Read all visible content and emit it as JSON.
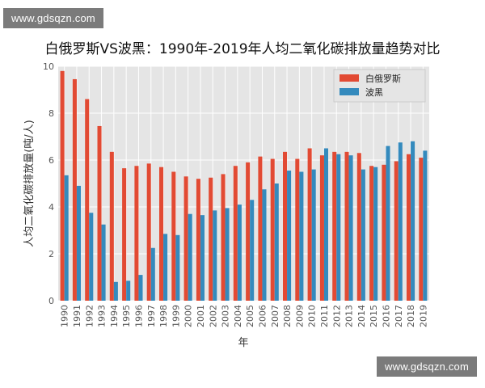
{
  "watermark": {
    "text": "www.gdsqzn.com"
  },
  "colors": {
    "belarus": "#e24a33",
    "poland": "#348abd",
    "plot_bg": "#e5e5e5",
    "grid": "#ffffff"
  },
  "chart_data": {
    "type": "bar",
    "title": "白俄罗斯VS波黑：1990年-2019年人均二氧化碳排放量趋势对比",
    "xlabel": "年",
    "ylabel": "人均二氧化碳排放量(吨/人)",
    "ylim": [
      0,
      10
    ],
    "yticks": [
      0,
      2,
      4,
      6,
      8,
      10
    ],
    "grid": true,
    "legend_position": "top-right",
    "categories": [
      "1990",
      "1991",
      "1992",
      "1993",
      "1994",
      "1995",
      "1996",
      "1997",
      "1998",
      "1999",
      "2000",
      "2001",
      "2002",
      "2003",
      "2004",
      "2005",
      "2006",
      "2007",
      "2008",
      "2009",
      "2010",
      "2011",
      "2012",
      "2013",
      "2014",
      "2015",
      "2016",
      "2017",
      "2018",
      "2019"
    ],
    "series": [
      {
        "name": "白俄罗斯",
        "color": "#e24a33",
        "values": [
          9.8,
          9.45,
          8.6,
          7.45,
          6.35,
          5.65,
          5.75,
          5.85,
          5.7,
          5.5,
          5.3,
          5.2,
          5.25,
          5.4,
          5.75,
          5.9,
          6.15,
          6.05,
          6.35,
          6.05,
          6.5,
          6.2,
          6.35,
          6.35,
          6.3,
          5.75,
          5.8,
          5.95,
          6.25,
          6.1
        ]
      },
      {
        "name": "波黑",
        "color": "#348abd",
        "values": [
          5.35,
          4.9,
          3.75,
          3.25,
          0.8,
          0.85,
          1.1,
          2.25,
          2.85,
          2.8,
          3.7,
          3.65,
          3.85,
          3.95,
          4.1,
          4.3,
          4.75,
          5.0,
          5.55,
          5.5,
          5.6,
          6.5,
          6.25,
          6.2,
          5.6,
          5.7,
          6.6,
          6.75,
          6.8,
          6.4
        ]
      }
    ]
  }
}
